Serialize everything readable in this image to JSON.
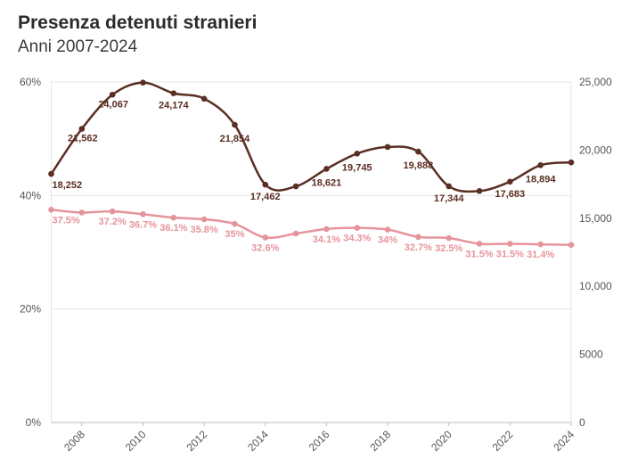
{
  "chart_data": {
    "type": "line",
    "title": "Presenza detenuti stranieri",
    "subtitle": "Anni 2007-2024",
    "x": [
      2007,
      2008,
      2009,
      2010,
      2011,
      2012,
      2013,
      2014,
      2015,
      2016,
      2017,
      2018,
      2019,
      2020,
      2021,
      2022,
      2023,
      2024
    ],
    "x_tick_labels": [
      "2008",
      "2010",
      "2012",
      "2014",
      "2016",
      "2018",
      "2020",
      "2022",
      "2024"
    ],
    "y_left": {
      "range": [
        0,
        60
      ],
      "tick_labels": [
        "0%",
        "20%",
        "40%",
        "60%"
      ]
    },
    "y_right": {
      "range": [
        0,
        25000
      ],
      "tick_labels": [
        "0",
        "5000",
        "10,000",
        "15,000",
        "20,000",
        "25,000"
      ]
    },
    "grid": true,
    "series": [
      {
        "axis": "right",
        "color": "#5a2e22",
        "values": [
          18252,
          21562,
          24067,
          24954,
          24174,
          23773,
          21854,
          17462,
          17340,
          18621,
          19745,
          20230,
          19888,
          17344,
          17000,
          17683,
          18894,
          19100
        ],
        "labels": [
          "18,252",
          "21,562",
          "24,067",
          "",
          "24,174",
          "",
          "21,854",
          "17,462",
          "",
          "18,621",
          "19,745",
          "",
          "19,888",
          "17,344",
          "",
          "17,683",
          "18,894",
          ""
        ]
      },
      {
        "axis": "left",
        "color": "#e5949b",
        "values": [
          37.5,
          37.0,
          37.2,
          36.7,
          36.1,
          35.8,
          35.0,
          32.6,
          33.3,
          34.1,
          34.3,
          34.0,
          32.7,
          32.5,
          31.5,
          31.5,
          31.4,
          31.3
        ],
        "labels": [
          "37.5%",
          "",
          "37.2%",
          "36.7%",
          "36.1%",
          "35.8%",
          "35%",
          "32.6%",
          "",
          "34.1%",
          "34.3%",
          "34%",
          "32.7%",
          "32.5%",
          "31.5%",
          "31.5%",
          "31.4%",
          ""
        ]
      }
    ]
  }
}
